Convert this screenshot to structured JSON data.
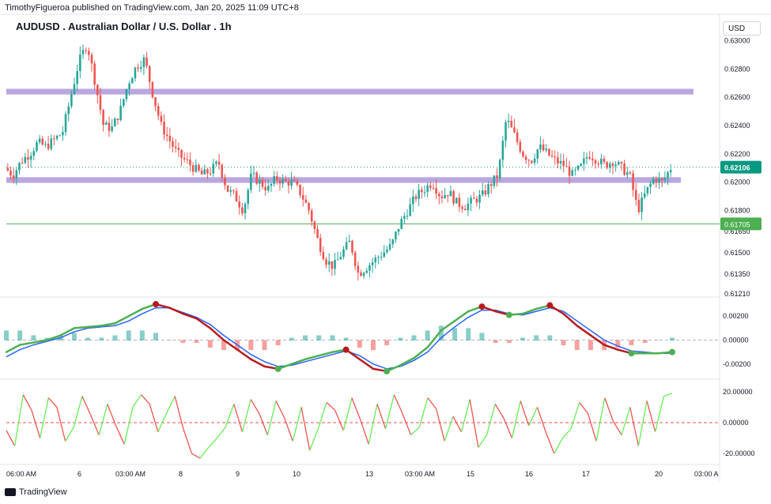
{
  "header": {
    "published_line": "TimothyFigueroa published on TradingView.com, Jan 20, 2025 11:09 UTC+8",
    "symbol_title": "AUDUSD . Australian Dollar / U.S. Dollar . 1h",
    "currency_button": "USD"
  },
  "footer": {
    "brand": "TradingView"
  },
  "colors": {
    "up": "#26a69a",
    "down": "#ef5350",
    "zone": "#b39ddb",
    "support_line": "#4caf50",
    "fast_line": "#4caf50",
    "slow_line": "#2962ff",
    "price_badge": "#089981"
  },
  "price_axis": {
    "ticks": [
      "0.63000",
      "0.62800",
      "0.62600",
      "0.62400",
      "0.62200",
      "0.62000",
      "0.61800",
      "0.61650",
      "0.61500",
      "0.61350",
      "0.61210"
    ],
    "last_price": "0.62106",
    "support_price": "0.61705"
  },
  "macd_axis": {
    "ticks": [
      "0.00200",
      "0.00000",
      "-0.00200"
    ]
  },
  "osc_axis": {
    "ticks": [
      "20.00000",
      "0.00000",
      "-20.00000"
    ]
  },
  "time_axis": {
    "labels": [
      "06:00 AM",
      "6",
      "03:00 AM",
      "8",
      "9",
      "10",
      "13",
      "03:00 AM",
      "15",
      "16",
      "17",
      "20",
      "03:00 A"
    ]
  },
  "chart_data": [
    {
      "type": "candlestick",
      "title": "AUDUSD . Australian Dollar / U.S. Dollar . 1h",
      "ylim": [
        0.6121,
        0.6302
      ],
      "zones": [
        {
          "low": 0.6262,
          "high": 0.6266
        },
        {
          "low": 0.61995,
          "high": 0.62035
        }
      ],
      "horizontal_lines": [
        {
          "value": 0.61705,
          "label": "0.61705"
        }
      ],
      "last_price": 0.62106,
      "close_path": [
        0.621,
        0.6205,
        0.6215,
        0.622,
        0.6228,
        0.6225,
        0.623,
        0.6235,
        0.626,
        0.6285,
        0.6298,
        0.627,
        0.624,
        0.6238,
        0.625,
        0.627,
        0.6282,
        0.6287,
        0.6262,
        0.624,
        0.623,
        0.622,
        0.6215,
        0.621,
        0.6205,
        0.6208,
        0.6214,
        0.6195,
        0.619,
        0.618,
        0.6205,
        0.62,
        0.6195,
        0.6203,
        0.62,
        0.62,
        0.6192,
        0.618,
        0.616,
        0.6145,
        0.614,
        0.615,
        0.6158,
        0.6135,
        0.614,
        0.6145,
        0.615,
        0.6155,
        0.617,
        0.618,
        0.619,
        0.6195,
        0.62,
        0.619,
        0.6193,
        0.6185,
        0.6183,
        0.6187,
        0.619,
        0.6198,
        0.6205,
        0.6245,
        0.6233,
        0.622,
        0.6215,
        0.6225,
        0.622,
        0.6215,
        0.6212,
        0.6205,
        0.621,
        0.622,
        0.6216,
        0.6212,
        0.6215,
        0.621,
        0.6205,
        0.618,
        0.6193,
        0.6203,
        0.62,
        0.621
      ]
    },
    {
      "type": "line",
      "ylabel": "",
      "ylim": [
        -0.003,
        0.0032
      ],
      "series": [
        {
          "color": "#4caf50",
          "values": [
            -0.001,
            -0.0004,
            -0.0002,
            0.0,
            0.0004,
            0.001,
            0.0011,
            0.0012,
            0.0014,
            0.002,
            0.0026,
            0.003,
            0.0027,
            0.0022,
            0.0018,
            0.001,
            0.0,
            -0.0008,
            -0.0016,
            -0.0022,
            -0.0024,
            -0.002,
            -0.0016,
            -0.0013,
            -0.001,
            -0.0008,
            -0.0016,
            -0.0024,
            -0.0026,
            -0.0021,
            -0.0015,
            -0.0006,
            0.0008,
            0.0016,
            0.0024,
            0.0028,
            0.0024,
            0.0021,
            0.0022,
            0.0026,
            0.0029,
            0.0022,
            0.0012,
            0.0004,
            -0.0004,
            -0.0008,
            -0.0011,
            -0.0011,
            -0.0011,
            -0.001
          ]
        },
        {
          "color": "#2962ff",
          "values": [
            -0.0014,
            -0.0008,
            -0.0004,
            -0.0001,
            0.0002,
            0.0007,
            0.001,
            0.0011,
            0.0012,
            0.0016,
            0.0022,
            0.0027,
            0.0027,
            0.0023,
            0.0019,
            0.0013,
            0.0004,
            -0.0004,
            -0.0012,
            -0.0018,
            -0.0022,
            -0.0021,
            -0.0018,
            -0.0015,
            -0.0012,
            -0.0009,
            -0.0013,
            -0.002,
            -0.0024,
            -0.0022,
            -0.0017,
            -0.001,
            0.0002,
            0.0011,
            0.0019,
            0.0025,
            0.0025,
            0.0022,
            0.0021,
            0.0024,
            0.0027,
            0.0024,
            0.0016,
            0.0008,
            0.0,
            -0.0005,
            -0.0009,
            -0.001,
            -0.0011,
            -0.0011
          ]
        }
      ]
    },
    {
      "type": "line",
      "ylim": [
        -25,
        25
      ],
      "series": [
        {
          "values": [
            -5,
            -15,
            18,
            8,
            -10,
            16,
            10,
            -12,
            -3,
            17,
            5,
            -8,
            12,
            -2,
            -14,
            10,
            18,
            12,
            -6,
            6,
            17,
            -4,
            -20,
            -23,
            -16,
            -10,
            -3,
            12,
            -6,
            15,
            6,
            -8,
            14,
            3,
            -12,
            10,
            -18,
            -4,
            13,
            8,
            -5,
            16,
            2,
            -14,
            12,
            -4,
            18,
            6,
            -8,
            -3,
            16,
            9,
            -12,
            4,
            -6,
            15,
            -16,
            -8,
            12,
            3,
            -10,
            14,
            -2,
            10,
            -6,
            -20,
            -10,
            -4,
            13,
            6,
            -12,
            16,
            1,
            -8,
            10,
            -15,
            14,
            -6,
            17,
            19
          ]
        }
      ]
    }
  ]
}
